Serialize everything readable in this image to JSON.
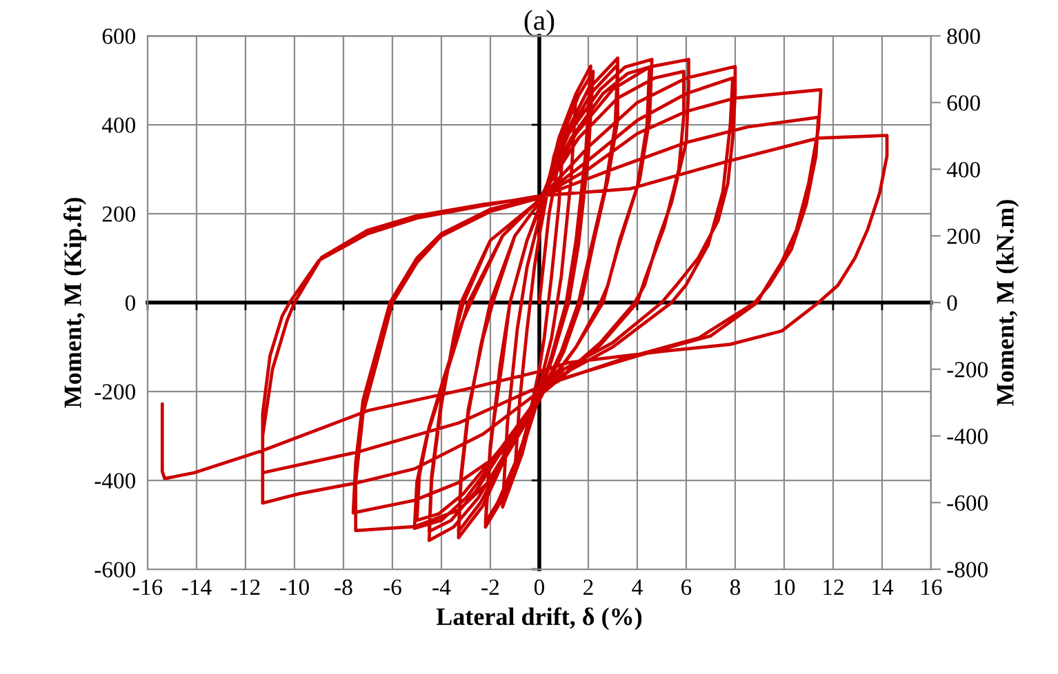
{
  "chart_data": {
    "type": "line",
    "title": "(a)",
    "xlabel": "Lateral drift, δ (%)",
    "ylabel": "Moment, M (Kip.ft)",
    "y2label": "Moment, M (kN.m)",
    "xlim": [
      -16,
      16
    ],
    "xticks": [
      -16,
      -14,
      -12,
      -10,
      -8,
      -6,
      -4,
      -2,
      0,
      2,
      4,
      6,
      8,
      10,
      12,
      14,
      16
    ],
    "ylim": [
      -600,
      600
    ],
    "yticks": [
      -600,
      -400,
      -200,
      0,
      200,
      400,
      600
    ],
    "y2lim": [
      -800,
      800
    ],
    "y2ticks": [
      -800,
      -600,
      -400,
      -200,
      0,
      200,
      400,
      600,
      800
    ],
    "grid": true,
    "line_style": "solid",
    "series": [
      {
        "color": "#cc0000",
        "x": [
          0,
          0.4,
          1.0,
          0.8,
          0.5,
          0.2,
          0,
          -0.5,
          -1.0,
          -0.8,
          -0.5,
          -0.2,
          0,
          0.6,
          1.5,
          1.3,
          0.9,
          0.5,
          0,
          -0.7,
          -1.5,
          -1.3,
          -0.9,
          -0.5,
          0,
          0.8,
          1.5,
          2.1,
          1.9,
          1.5,
          1.1,
          0.5,
          0,
          -0.8,
          -1.6,
          -2.2,
          -2.0,
          -1.6,
          -1.2,
          -0.5,
          0,
          0.9,
          1.6,
          2.2,
          2.0,
          1.6,
          1.2,
          0.5,
          0,
          -0.9,
          -1.7,
          -2.2,
          -2.0,
          -1.5,
          -1.2,
          -0.5,
          0,
          1.0,
          2.0,
          3.2,
          3.2,
          2.8,
          2.2,
          1.7,
          1.0,
          0,
          -1.4,
          -2.3,
          -3.3,
          -3.2,
          -2.9,
          -2.4,
          -2.0,
          -1.0,
          0,
          1.1,
          2.1,
          3.2,
          3.1,
          2.7,
          2.1,
          1.6,
          0.9,
          0,
          -1.4,
          -2.4,
          -3.3,
          -3.2,
          -2.9,
          -2.3,
          -1.9,
          -1.0,
          0,
          1.2,
          2.5,
          3.5,
          4.6,
          4.5,
          4.1,
          3.3,
          2.8,
          2.5,
          1.5,
          0,
          -1.4,
          -2.5,
          -3.5,
          -4.5,
          -4.4,
          -4.0,
          -3.5,
          -3.2,
          -2.0,
          0,
          1.3,
          2.6,
          3.6,
          4.5,
          4.4,
          4.0,
          3.2,
          2.6,
          1.5,
          0,
          -1.5,
          -2.6,
          -3.6,
          -4.5,
          -4.4,
          -4.0,
          -3.4,
          -3.1,
          -2.0,
          0,
          1.5,
          3.0,
          4.5,
          6.1,
          6.1,
          6.0,
          5.4,
          4.8,
          4.3,
          3.9,
          2.5,
          0,
          -1.5,
          -3.0,
          -4.0,
          -5.1,
          -5.0,
          -4.6,
          -4.0,
          -3.3,
          -2.9,
          -1.5,
          0,
          1.6,
          3.2,
          4.7,
          5.9,
          5.9,
          5.7,
          5.1,
          4.3,
          4.0,
          2.5,
          0,
          -1.6,
          -3.1,
          -4.1,
          -5.0,
          -4.9,
          -4.5,
          -3.9,
          -3.2,
          -2.8,
          -1.5,
          0,
          2,
          4,
          6,
          8.0,
          8.0,
          7.9,
          7.7,
          7.3,
          6.5,
          5.6,
          5.0,
          3.0,
          1.0,
          0,
          -1.0,
          -2.0,
          -3.3,
          -5.1,
          -7.5,
          -7.5,
          -7.2,
          -6.6,
          -6.0,
          -5.0,
          -4.0,
          -2.0,
          0,
          2,
          4,
          6,
          7.9,
          7.8,
          7.5,
          6.9,
          6.0,
          5.4,
          3.0,
          1.0,
          0,
          -1.4,
          -3.3,
          -5.1,
          -7.6,
          -7.5,
          -7.2,
          -6.6,
          -6.1,
          -5.0,
          -4.0,
          -2.0,
          0,
          2,
          4,
          6,
          8,
          11.5,
          11.4,
          11.0,
          10.5,
          9.9,
          9.1,
          8.9,
          7.0,
          4.0,
          1.0,
          0,
          -2.3,
          -5.1,
          -7.4,
          -9.8,
          -11.3,
          -11.3,
          -10.9,
          -10.3,
          -10.0,
          -8.9,
          -7.0,
          -5.1,
          -2.3,
          0,
          3,
          6,
          8.5,
          11.4,
          11.3,
          10.9,
          10.3,
          9.4,
          8.8,
          6.5,
          3.5,
          0,
          -0.8,
          -3.3,
          -7.4,
          -11.3,
          -11.3,
          -11.0,
          -10.5,
          -10.2,
          -9.0,
          -7.0,
          -5.0,
          -2.3,
          0,
          3.7,
          7.7,
          11.4,
          14.2,
          14.2,
          13.9,
          13.4,
          12.9,
          12.2,
          11.4,
          9.9,
          7.8,
          5.0,
          1.2,
          0,
          -3.0,
          -7.0,
          -11.3,
          -14.1,
          -15.3,
          -15.4,
          -15.4
        ],
        "values": [
          0,
          200,
          380,
          220,
          60,
          -80,
          -150,
          -280,
          -380,
          -220,
          -60,
          80,
          150,
          330,
          470,
          280,
          60,
          -80,
          -190,
          -340,
          -460,
          -270,
          -60,
          80,
          190,
          370,
          470,
          532,
          340,
          140,
          0,
          -120,
          -210,
          -350,
          -450,
          -505,
          -330,
          -140,
          0,
          140,
          210,
          370,
          465,
          520,
          330,
          130,
          0,
          -130,
          -210,
          -350,
          -450,
          -495,
          -320,
          -130,
          0,
          140,
          215,
          370,
          480,
          550,
          411,
          277,
          132,
          0,
          -110,
          -220,
          -350,
          -457,
          -529,
          -400,
          -250,
          -100,
          0,
          150,
          225,
          370,
          470,
          535,
          400,
          260,
          120,
          0,
          -110,
          -215,
          -345,
          -450,
          -515,
          -390,
          -240,
          -80,
          0,
          150,
          225,
          380,
          480,
          530,
          547,
          411,
          277,
          144,
          39,
          0,
          -100,
          -215,
          -340,
          -440,
          -505,
          -535,
          -400,
          -230,
          -80,
          0,
          140,
          230,
          370,
          470,
          515,
          530,
          400,
          260,
          120,
          0,
          -100,
          -210,
          -330,
          -425,
          -490,
          -515,
          -390,
          -220,
          -60,
          0,
          140,
          230,
          380,
          480,
          530,
          547,
          486,
          361,
          225,
          132,
          39,
          0,
          -90,
          -210,
          -330,
          -440,
          -490,
          -508,
          -404,
          -302,
          -197,
          -73,
          0,
          150,
          232,
          370,
          460,
          505,
          520,
          420,
          300,
          170,
          50,
          0,
          -95,
          -210,
          -330,
          -430,
          -475,
          -490,
          -390,
          -280,
          -170,
          -50,
          0,
          150,
          232,
          350,
          450,
          505,
          531,
          472,
          370,
          268,
          184,
          101,
          39,
          0,
          -90,
          -150,
          -200,
          -300,
          -400,
          -467,
          -504,
          -513,
          -404,
          -249,
          -126,
          0,
          90,
          150,
          205,
          235,
          320,
          410,
          470,
          505,
          400,
          250,
          130,
          40,
          0,
          -100,
          -160,
          -210,
          -333,
          -405,
          -445,
          -473,
          -360,
          -220,
          -100,
          0,
          100,
          155,
          210,
          237,
          300,
          380,
          430,
          460,
          479,
          392,
          268,
          163,
          91,
          20,
          0,
          -75,
          -120,
          -170,
          -200,
          -296,
          -374,
          -405,
          -430,
          -451,
          -300,
          -150,
          -40,
          0,
          101,
          163,
          194,
          221,
          237,
          300,
          360,
          395,
          417,
          330,
          220,
          120,
          40,
          0,
          -80,
          -125,
          -190,
          -209,
          -271,
          -336,
          -383,
          -250,
          -120,
          -30,
          0,
          95,
          155,
          190,
          218,
          240,
          256,
          318,
          370,
          376,
          330,
          246,
          163,
          101,
          39,
          0,
          -64,
          -94,
          -110,
          -135,
          -155,
          -195,
          -243,
          -333,
          -383,
          -396,
          -380,
          -228
        ]
      }
    ]
  }
}
